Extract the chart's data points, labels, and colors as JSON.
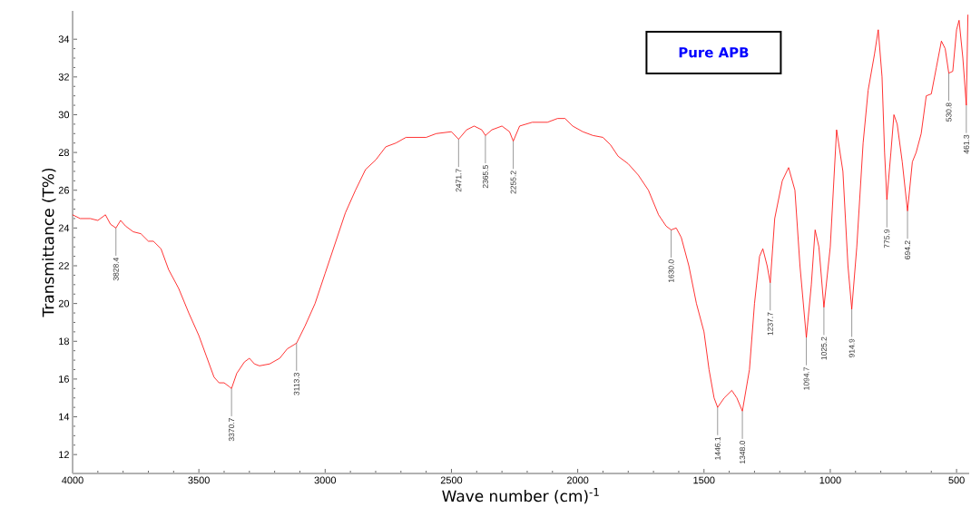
{
  "chart_data": {
    "type": "line",
    "title": "Pure APB",
    "xlabel": "Wave number (cm)$^{-1}$",
    "ylabel": "Transmittance (T%)",
    "x": [
      4000,
      3970,
      3930,
      3900,
      3870,
      3850,
      3828.4,
      3810,
      3790,
      3760,
      3730,
      3700,
      3680,
      3650,
      3620,
      3580,
      3540,
      3500,
      3470,
      3440,
      3420,
      3400,
      3380,
      3370.7,
      3350,
      3320,
      3300,
      3280,
      3260,
      3220,
      3180,
      3150,
      3113.3,
      3080,
      3040,
      3000,
      2960,
      2920,
      2880,
      2840,
      2800,
      2760,
      2720,
      2680,
      2640,
      2600,
      2560,
      2500,
      2471.7,
      2440,
      2410,
      2380,
      2365.5,
      2340,
      2300,
      2270,
      2255.2,
      2230,
      2180,
      2120,
      2080,
      2050,
      2020,
      1980,
      1940,
      1900,
      1870,
      1840,
      1800,
      1760,
      1720,
      1680,
      1650,
      1630,
      1610,
      1590,
      1560,
      1530,
      1500,
      1480,
      1460,
      1446.1,
      1420,
      1390,
      1370,
      1348,
      1320,
      1300,
      1280,
      1267,
      1250,
      1237.7,
      1220,
      1190,
      1165,
      1140,
      1120,
      1094.7,
      1075,
      1060,
      1045,
      1025.2,
      1000,
      975,
      950,
      930,
      914.9,
      895,
      870,
      850,
      825,
      810,
      795,
      785,
      775.9,
      760,
      748,
      735,
      715,
      694.2,
      675,
      660,
      640,
      620,
      600,
      580,
      560,
      545,
      530.8,
      515,
      500,
      490,
      475,
      461.3,
      455
    ],
    "series": [
      {
        "color": "#ff0000",
        "values": [
          24.7,
          24.5,
          24.5,
          24.4,
          24.7,
          24.2,
          24.0,
          24.4,
          24.1,
          23.8,
          23.7,
          23.3,
          23.3,
          22.9,
          21.8,
          20.8,
          19.5,
          18.3,
          17.2,
          16.1,
          15.8,
          15.8,
          15.6,
          15.5,
          16.3,
          16.9,
          17.1,
          16.8,
          16.7,
          16.8,
          17.1,
          17.6,
          17.9,
          18.8,
          20.0,
          21.6,
          23.2,
          24.8,
          26.0,
          27.1,
          27.6,
          28.3,
          28.5,
          28.8,
          28.8,
          28.8,
          29.0,
          29.1,
          28.7,
          29.2,
          29.4,
          29.2,
          28.9,
          29.2,
          29.4,
          29.1,
          28.6,
          29.4,
          29.6,
          29.6,
          29.8,
          29.8,
          29.4,
          29.1,
          28.9,
          28.8,
          28.4,
          27.8,
          27.4,
          26.8,
          26.0,
          24.7,
          24.1,
          23.9,
          24.0,
          23.5,
          22.0,
          20.0,
          18.5,
          16.5,
          15.0,
          14.5,
          15.0,
          15.4,
          15.0,
          14.3,
          16.5,
          20.0,
          22.5,
          22.9,
          22.0,
          21.1,
          24.5,
          26.5,
          27.2,
          26.0,
          22.0,
          18.2,
          21.0,
          23.9,
          23.0,
          19.8,
          23.0,
          29.2,
          27.0,
          22.0,
          19.7,
          23.0,
          28.5,
          31.3,
          33.2,
          34.5,
          32.0,
          28.0,
          25.5,
          28.0,
          30.0,
          29.5,
          27.5,
          24.9,
          27.5,
          28.0,
          29.0,
          31.0,
          31.1,
          32.5,
          33.9,
          33.5,
          32.2,
          32.3,
          34.5,
          35.0,
          33.0,
          30.5,
          35.3
        ]
      }
    ],
    "xlim": [
      4000,
      450
    ],
    "ylim": [
      11,
      35.5
    ],
    "xticks": [
      4000,
      3500,
      3000,
      2500,
      2000,
      1500,
      1000,
      500
    ],
    "yticks": [
      12,
      14,
      16,
      18,
      20,
      22,
      24,
      26,
      28,
      30,
      32,
      34
    ],
    "annotations": [
      {
        "text": "3828.4",
        "x": 3828.4,
        "y": 24.0
      },
      {
        "text": "3370.7",
        "x": 3370.7,
        "y": 15.5
      },
      {
        "text": "3113.3",
        "x": 3113.3,
        "y": 17.9
      },
      {
        "text": "2471.7",
        "x": 2471.7,
        "y": 28.7
      },
      {
        "text": "2365.5",
        "x": 2365.5,
        "y": 28.9
      },
      {
        "text": "2255.2",
        "x": 2255.2,
        "y": 28.6
      },
      {
        "text": "1630.0",
        "x": 1630.0,
        "y": 23.9
      },
      {
        "text": "1446.1",
        "x": 1446.1,
        "y": 14.5
      },
      {
        "text": "1348.0",
        "x": 1348.0,
        "y": 14.3
      },
      {
        "text": "1237.7",
        "x": 1237.7,
        "y": 21.1
      },
      {
        "text": "1094.7",
        "x": 1094.7,
        "y": 18.2
      },
      {
        "text": "1025.2",
        "x": 1025.2,
        "y": 19.8
      },
      {
        "text": "914.9",
        "x": 914.9,
        "y": 19.7
      },
      {
        "text": "775.9",
        "x": 775.9,
        "y": 25.5
      },
      {
        "text": "694.2",
        "x": 694.2,
        "y": 24.9
      },
      {
        "text": "530.8",
        "x": 530.8,
        "y": 32.2
      },
      {
        "text": "461.3",
        "x": 461.3,
        "y": 30.5
      }
    ]
  }
}
